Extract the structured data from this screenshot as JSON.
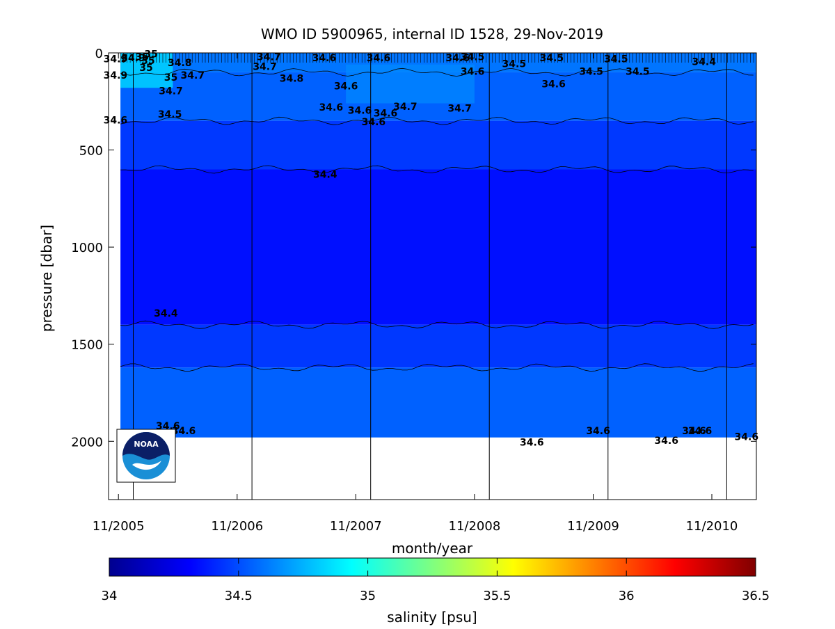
{
  "chart_data": {
    "type": "heatmap",
    "title": "WMO ID 5900965, internal ID 1528, 29-Nov-2019",
    "xlabel": "month/year",
    "ylabel": "pressure [dbar]",
    "x_tick_labels": [
      "11/2005",
      "11/2006",
      "11/2007",
      "11/2008",
      "11/2009",
      "11/2010"
    ],
    "x_tick_months": [
      0,
      12,
      24,
      36,
      48,
      60
    ],
    "xlim_months": [
      -1,
      64.5
    ],
    "y_ticks": [
      0,
      500,
      1000,
      1500,
      2000
    ],
    "ylim": [
      2300,
      0
    ],
    "year_boundary_months": [
      1.5,
      13.5,
      25.5,
      37.5,
      49.5,
      61.5
    ],
    "colorbar": {
      "label": "salinity [psu]",
      "range": [
        34,
        36.5
      ],
      "ticks": [
        "34",
        "34.5",
        "35",
        "35.5",
        "36",
        "36.5"
      ]
    },
    "salinity_layers": [
      {
        "pressure_range": [
          0,
          100
        ],
        "salinity": 34.6
      },
      {
        "pressure_range": [
          100,
          350
        ],
        "salinity": 34.55
      },
      {
        "pressure_range": [
          350,
          600
        ],
        "salinity": 34.45
      },
      {
        "pressure_range": [
          600,
          1400
        ],
        "salinity": 34.35
      },
      {
        "pressure_range": [
          1400,
          1620
        ],
        "salinity": 34.45
      },
      {
        "pressure_range": [
          1620,
          1980
        ],
        "salinity": 34.55
      }
    ],
    "contour_labels": [
      {
        "month": -0.3,
        "pressure": 30,
        "text": "34.9"
      },
      {
        "month": 1.5,
        "pressure": 25,
        "text": "34.9"
      },
      {
        "month": 2.4,
        "pressure": 20,
        "text": "35"
      },
      {
        "month": 3.0,
        "pressure": 40,
        "text": "35"
      },
      {
        "month": 3.3,
        "pressure": 5,
        "text": "35"
      },
      {
        "month": -0.3,
        "pressure": 115,
        "text": "34.9"
      },
      {
        "month": 2.8,
        "pressure": 75,
        "text": "35"
      },
      {
        "month": 6.2,
        "pressure": 50,
        "text": "34.8"
      },
      {
        "month": 5.3,
        "pressure": 125,
        "text": "35"
      },
      {
        "month": 7.5,
        "pressure": 115,
        "text": "34.7"
      },
      {
        "month": 5.3,
        "pressure": 195,
        "text": "34.7"
      },
      {
        "month": 15.2,
        "pressure": 20,
        "text": "34.7"
      },
      {
        "month": 14.8,
        "pressure": 70,
        "text": "34.7"
      },
      {
        "month": 17.5,
        "pressure": 130,
        "text": "34.8"
      },
      {
        "month": 20.8,
        "pressure": 25,
        "text": "34.6"
      },
      {
        "month": 23.0,
        "pressure": 170,
        "text": "34.6"
      },
      {
        "month": 26.3,
        "pressure": 25,
        "text": "34.6"
      },
      {
        "month": 34.3,
        "pressure": 25,
        "text": "34.6"
      },
      {
        "month": 35.8,
        "pressure": 20,
        "text": "34.5"
      },
      {
        "month": 35.8,
        "pressure": 95,
        "text": "34.6"
      },
      {
        "month": 40.0,
        "pressure": 55,
        "text": "34.5"
      },
      {
        "month": 43.8,
        "pressure": 25,
        "text": "34.5"
      },
      {
        "month": 50.3,
        "pressure": 30,
        "text": "34.5"
      },
      {
        "month": 47.8,
        "pressure": 95,
        "text": "34.5"
      },
      {
        "month": 52.5,
        "pressure": 95,
        "text": "34.5"
      },
      {
        "month": 44.0,
        "pressure": 160,
        "text": "34.6"
      },
      {
        "month": 59.2,
        "pressure": 45,
        "text": "34.4"
      },
      {
        "month": -0.3,
        "pressure": 345,
        "text": "34.6"
      },
      {
        "month": 5.2,
        "pressure": 315,
        "text": "34.5"
      },
      {
        "month": 21.5,
        "pressure": 280,
        "text": "34.6"
      },
      {
        "month": 24.4,
        "pressure": 295,
        "text": "34.6"
      },
      {
        "month": 27.0,
        "pressure": 310,
        "text": "34.6"
      },
      {
        "month": 29.0,
        "pressure": 275,
        "text": "34.7"
      },
      {
        "month": 34.5,
        "pressure": 285,
        "text": "34.7"
      },
      {
        "month": 25.8,
        "pressure": 355,
        "text": "34.6"
      },
      {
        "month": 20.9,
        "pressure": 625,
        "text": "34.4"
      },
      {
        "month": 4.8,
        "pressure": 1340,
        "text": "34.4"
      },
      {
        "month": 5.0,
        "pressure": 1920,
        "text": "34.6"
      },
      {
        "month": 6.6,
        "pressure": 1945,
        "text": "34.6"
      },
      {
        "month": 41.8,
        "pressure": 2005,
        "text": "34.6"
      },
      {
        "month": 48.5,
        "pressure": 1945,
        "text": "34.6"
      },
      {
        "month": 55.4,
        "pressure": 1995,
        "text": "34.6"
      },
      {
        "month": 58.2,
        "pressure": 1945,
        "text": "34.6"
      },
      {
        "month": 58.8,
        "pressure": 1945,
        "text": "34.6"
      },
      {
        "month": 63.5,
        "pressure": 1975,
        "text": "34.6"
      }
    ]
  },
  "logo": {
    "text": "NOAA",
    "icon": "noaa-logo-icon"
  },
  "colors": {
    "background": "#ffffff",
    "colormap": "jet"
  }
}
